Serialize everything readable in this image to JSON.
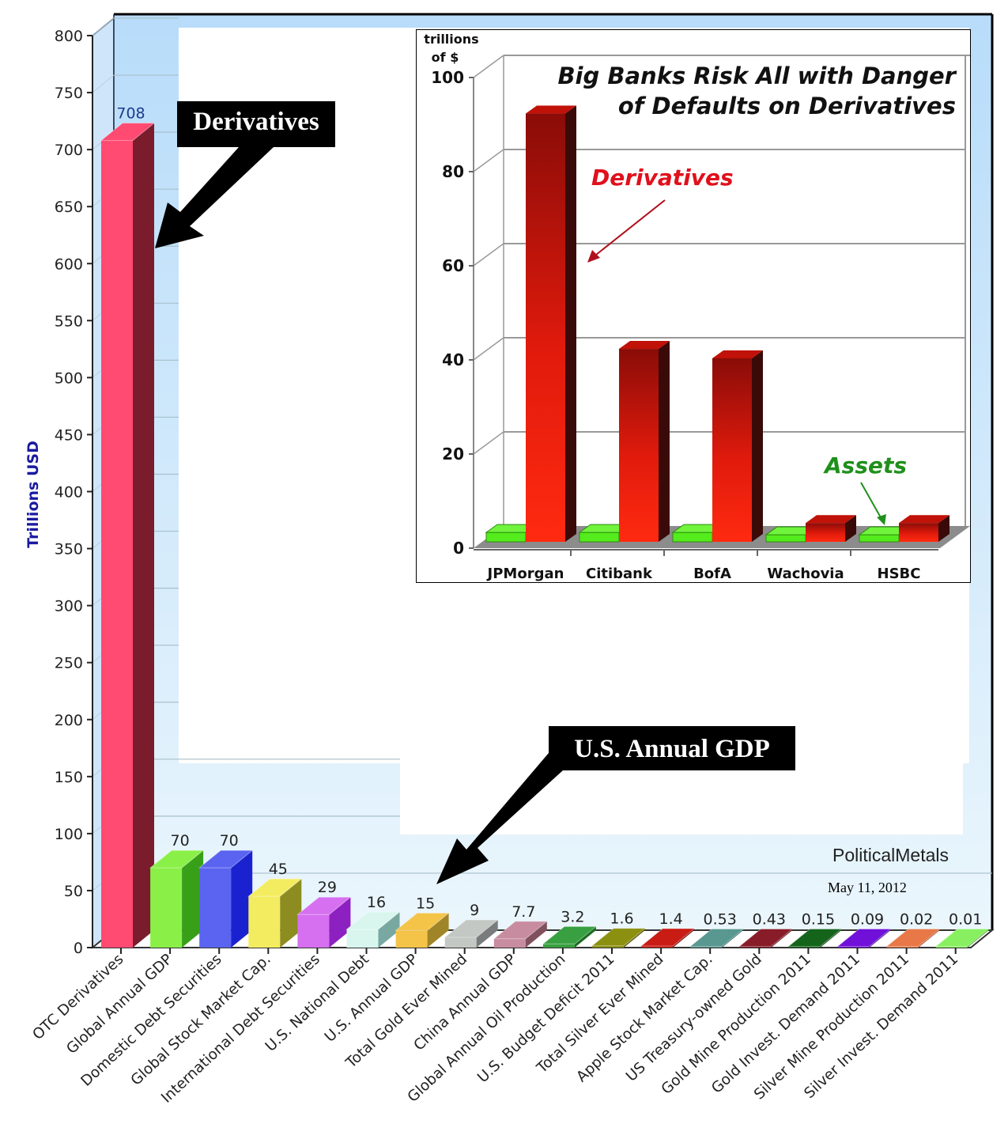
{
  "chart_data": [
    {
      "type": "bar",
      "title": "",
      "ylabel": "Trillions USD",
      "xlabel": "",
      "ylim": [
        0,
        800
      ],
      "yticks": [
        0,
        50,
        100,
        150,
        200,
        250,
        300,
        350,
        400,
        450,
        500,
        550,
        600,
        650,
        700,
        750,
        800
      ],
      "grid": true,
      "categories": [
        "OTC Derivatives",
        "Global Annual GDP",
        "Domestic Debt Securities",
        "Global Stock Market Cap.",
        "International Debt Securities",
        "U.S. National Debt",
        "U.S. Annual GDP",
        "Total Gold Ever Mined",
        "China Annual GDP",
        "Global Annual Oil Production",
        "U.S. Budget Deficit 2011",
        "Total Silver Ever Mined",
        "Apple Stock Market Cap.",
        "US Treasury-owned Gold",
        "Gold Mine Production 2011",
        "Gold Invest. Demand 2011",
        "Silver Mine Production 2011",
        "Silver Invest. Demand 2011"
      ],
      "values": [
        708,
        70,
        70,
        45,
        29,
        16,
        15,
        9,
        7.7,
        3.2,
        1.6,
        1.4,
        0.53,
        0.43,
        0.15,
        0.09,
        0.02,
        0.01
      ],
      "value_labels": [
        "708",
        "70",
        "70",
        "45",
        "29",
        "16",
        "15",
        "9",
        "7.7",
        "3.2",
        "1.6",
        "1.4",
        "0.53",
        "0.43",
        "0.15",
        "0.09",
        "0.02",
        "0.01"
      ],
      "colors": [
        "#ff4a72",
        "#8af048",
        "#5a64f0",
        "#f4ec60",
        "#d670f0",
        "#d8f6ee",
        "#f4c448",
        "#c4c8c4",
        "#c88ca0",
        "#38a040",
        "#8c9010",
        "#c81c14",
        "#589890",
        "#881c28",
        "#14641c",
        "#7010d8",
        "#e87848",
        "#88f060"
      ],
      "side_colors": [
        "#7a1c2c",
        "#38a018",
        "#1a22d0",
        "#8c8c20",
        "#8c20c0",
        "#78a8a0",
        "#a08428",
        "#787c7c",
        "#80505c",
        "#1c6c24",
        "#5c5c08",
        "#801010",
        "#386860",
        "#5c1018",
        "#0c400c",
        "#400890",
        "#a04828",
        "#50a030"
      ]
    },
    {
      "type": "bar",
      "title": "Big Banks Risk All with Danger of Defaults on Derivatives",
      "title_lines": [
        "Big Banks Risk All with Danger",
        "of Defaults on Derivatives"
      ],
      "ylabel": "trillions of $",
      "ylabel_lines": [
        "trillions",
        "of $"
      ],
      "ylim": [
        0,
        100
      ],
      "yticks": [
        0,
        20,
        40,
        60,
        80,
        100
      ],
      "grid": true,
      "categories": [
        "JPMorgan",
        "Citibank",
        "BofA",
        "Wachovia",
        "HSBC"
      ],
      "series": [
        {
          "name": "Assets",
          "values": [
            2,
            2,
            2,
            1.5,
            1.5
          ],
          "color": "#50e820"
        },
        {
          "name": "Derivatives",
          "values": [
            91,
            41,
            39,
            4,
            4
          ],
          "color": "#e81808"
        }
      ],
      "annotations": {
        "derivatives": "Derivatives",
        "assets": "Assets",
        "derivatives_color": "#e0101c",
        "assets_color": "#20901c"
      }
    }
  ],
  "callouts": {
    "derivatives": "Derivatives",
    "us_gdp": "U.S. Annual GDP"
  },
  "footer": {
    "brand": "PoliticalMetals",
    "date": "May 11, 2012"
  },
  "colors": {
    "frame_blue": "#b4d8f8",
    "axis_title": "#1a1aa0",
    "value_label_top": "#1c3c8c"
  }
}
